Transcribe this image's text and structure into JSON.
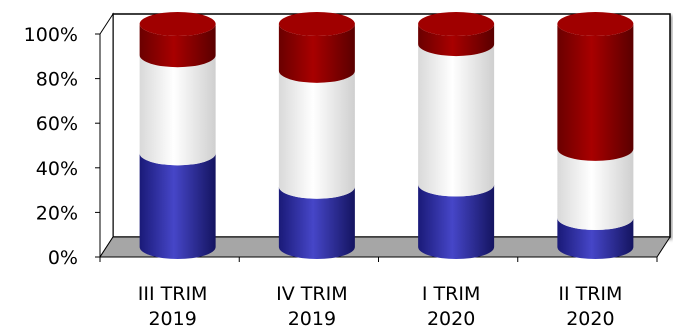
{
  "chart_data": {
    "type": "bar",
    "stacked": true,
    "normalized": true,
    "three_d": true,
    "categories": [
      [
        "III TRIM",
        "2019"
      ],
      [
        "IV TRIM",
        "2019"
      ],
      [
        "I TRIM",
        "2020"
      ],
      [
        "II TRIM",
        "2020"
      ]
    ],
    "series": [
      {
        "color": "#2e2e9e",
        "values": [
          42,
          27,
          28,
          13
        ]
      },
      {
        "color": "#ffffff",
        "values": [
          44,
          52,
          63,
          31
        ]
      },
      {
        "color": "#8b0000",
        "values": [
          14,
          21,
          9,
          56
        ]
      }
    ],
    "ylim": [
      0,
      100
    ],
    "yticks": [
      "0%",
      "20%",
      "40%",
      "60%",
      "80%",
      "100%"
    ],
    "grid": false,
    "legend": "none",
    "colors": {
      "wall": "#ffffff",
      "floor": "#a6a6a6",
      "axis": "#000000"
    }
  }
}
